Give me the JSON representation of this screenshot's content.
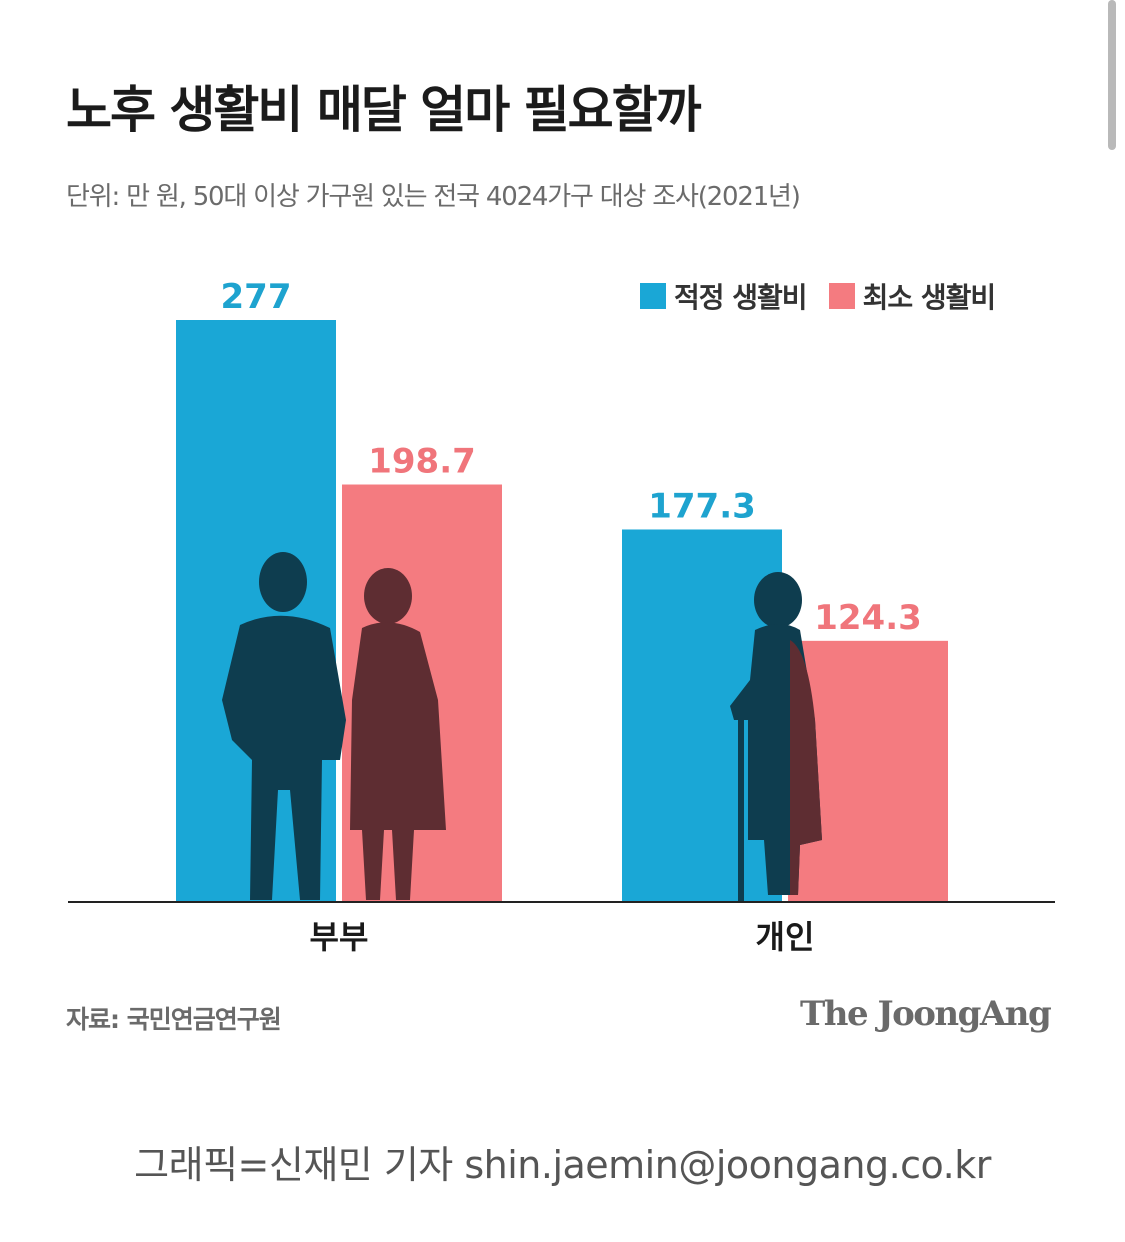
{
  "title": "노후 생활비 매달 얼마 필요할까",
  "subtitle": "단위: 만 원, 50대 이상 가구원 있는 전국 4024가구 대상 조사(2021년)",
  "source": "자료: 국민연금연구원",
  "brand": "The JoongAng",
  "credit": "그래픽=신재민 기자 shin.jaemin@joongang.co.kr",
  "colors": {
    "series_1": "#1aa7d6",
    "series_2": "#f47b80",
    "silhouette_dark": "#0e3d4f",
    "silhouette_mid": "#5e2d32",
    "axis": "#222222"
  },
  "chart_data": {
    "type": "bar",
    "categories": [
      "부부",
      "개인"
    ],
    "series": [
      {
        "name": "적정 생활비",
        "values": [
          277,
          177.3
        ],
        "labels": [
          "277",
          "177.3"
        ]
      },
      {
        "name": "최소 생활비",
        "values": [
          198.7,
          124.3
        ],
        "labels": [
          "198.7",
          "124.3"
        ]
      }
    ],
    "ylim": [
      0,
      277
    ],
    "grid": false,
    "legend_position": "top-right"
  }
}
